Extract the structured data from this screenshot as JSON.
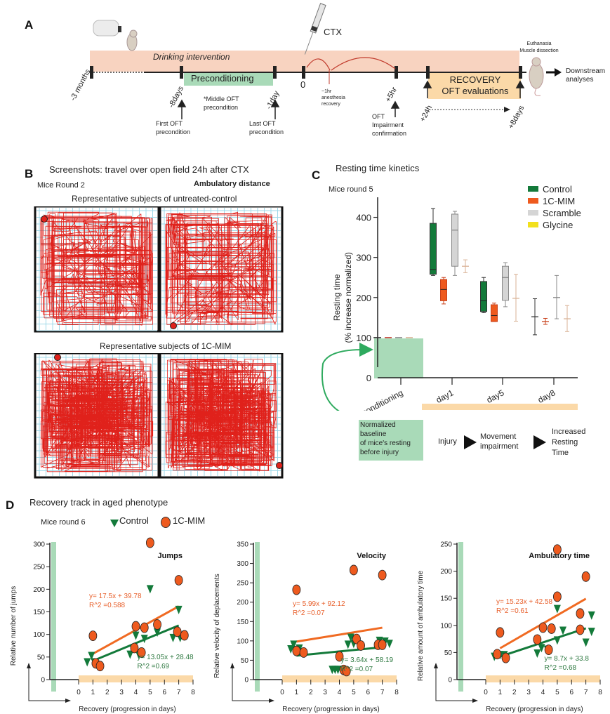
{
  "panelA": {
    "letter": "A",
    "drinking_label": "Drinking intervention",
    "preconditioning_label": "Preconditioning",
    "ctx_label": "CTX",
    "timepoints": [
      "-3 months",
      "-8days",
      "-1day",
      "0",
      "+5hr",
      "+24h",
      "+8days"
    ],
    "first_oft": [
      "First OFT",
      "precondition"
    ],
    "middle_oft": [
      "*Middle OFT",
      "precondition"
    ],
    "last_oft": [
      "Last OFT",
      "precondition"
    ],
    "anesthesia": [
      "~1hr",
      "anesthesia",
      "recovery"
    ],
    "impairment": [
      "OFT",
      "Impairment",
      "confirmation"
    ],
    "recovery_box": [
      "RECOVERY",
      "OFT evaluations"
    ],
    "euthanasia": [
      "Euthanasia",
      "Muscle dissection"
    ],
    "downstream": [
      "Downstream",
      "analyses"
    ],
    "colors": {
      "drinking": "#f8d3c0",
      "preconditioning": "#a9dab8",
      "recovery": "#fbd9a8",
      "accent_red": "#c0392b"
    }
  },
  "panelB": {
    "letter": "B",
    "title": "Screenshots: travel over open field 24h after CTX",
    "round": "Mice Round 2",
    "metric": "Ambulatory distance",
    "group1": "Representative subjects of untreated-control",
    "group2": "Representative subjects of 1C-MIM",
    "colors": {
      "grid": "#9fd8e8",
      "track": "#e0211b"
    }
  },
  "panelC": {
    "letter": "C",
    "title": "Resting time kinetics",
    "round": "Mice round 5",
    "baseline_note": [
      "Normalized",
      "baseline",
      "of mice's resting",
      "before injury"
    ],
    "flow": [
      "Injury",
      "Movement",
      "impairment",
      "Increased",
      "Resting",
      "Time"
    ]
  },
  "panelD": {
    "letter": "D",
    "title": "Recovery track in aged phenotype",
    "round": "Mice round 6",
    "legend": [
      "Control",
      "1C-MIM"
    ]
  },
  "chart_data": [
    {
      "id": "resting",
      "type": "box",
      "title": "Resting time kinetics",
      "ylabel": "Resting time (% increase normalized)",
      "yticks": [
        0,
        100,
        200,
        300,
        400
      ],
      "ylim": [
        0,
        450
      ],
      "categories": [
        "Pre-conditioning",
        "day1",
        "day5",
        "day8"
      ],
      "legend": [
        {
          "name": "Control",
          "color": "#137a3a"
        },
        {
          "name": "1C-MIM",
          "color": "#ee5a1e"
        },
        {
          "name": "Scramble",
          "color": "#d5d5d5"
        },
        {
          "name": "Glycine",
          "color": "#f2e01d"
        }
      ],
      "series": [
        {
          "name": "Control",
          "color": "#137a3a",
          "edge": "#333",
          "boxes": [
            {
              "cat": "Pre-conditioning",
              "median": 100
            },
            {
              "cat": "day1",
              "min": 255,
              "q1": 258,
              "median": 270,
              "q3": 385,
              "max": 422
            },
            {
              "cat": "day5",
              "min": 162,
              "q1": 165,
              "median": 192,
              "q3": 240,
              "max": 250
            },
            {
              "cat": "day8",
              "min": 107,
              "median": 152,
              "max": 197
            }
          ]
        },
        {
          "name": "1C-MIM",
          "color": "#ee5a1e",
          "edge": "#c8401a",
          "boxes": [
            {
              "cat": "Pre-conditioning",
              "median": 100
            },
            {
              "cat": "day1",
              "min": 184,
              "q1": 192,
              "median": 220,
              "q3": 245,
              "max": 250
            },
            {
              "cat": "day5",
              "min": 140,
              "q1": 140,
              "median": 155,
              "q3": 182,
              "max": 186
            },
            {
              "cat": "day8",
              "min": 133,
              "median": 140,
              "max": 148
            }
          ]
        },
        {
          "name": "Scramble",
          "color": "#d5d5d5",
          "edge": "#888",
          "boxes": [
            {
              "cat": "Pre-conditioning",
              "median": 100
            },
            {
              "cat": "day1",
              "min": 255,
              "q1": 278,
              "median": 368,
              "q3": 408,
              "max": 415
            },
            {
              "cat": "day5",
              "min": 177,
              "q1": 193,
              "median": 250,
              "q3": 278,
              "max": 287
            },
            {
              "cat": "day8",
              "min": 147,
              "median": 200,
              "max": 255
            }
          ]
        },
        {
          "name": "Glycine",
          "color": "#e8c4a8",
          "edge": "#d9b296",
          "boxes": [
            {
              "cat": "Pre-conditioning",
              "median": 100
            },
            {
              "cat": "day1",
              "min": 262,
              "median": 278,
              "max": 294
            },
            {
              "cat": "day5",
              "min": 141,
              "median": 198,
              "max": 258
            },
            {
              "cat": "day8",
              "min": 115,
              "median": 147,
              "max": 180
            }
          ]
        }
      ]
    },
    {
      "id": "jumps",
      "type": "scatter",
      "title": "Jumps",
      "xlabel": "Recovery (progression in days)",
      "ylabel": "Relative number of jumps",
      "xlim": [
        0,
        8
      ],
      "ylim": [
        0,
        300
      ],
      "xticks": [
        0,
        1,
        2,
        3,
        4,
        5,
        6,
        7,
        8
      ],
      "yticks": [
        0,
        50,
        100,
        150,
        200,
        250,
        300
      ],
      "series": [
        {
          "name": "Control",
          "marker": "triangle-down",
          "color": "#137a3a",
          "points": [
            [
              0.6,
              38
            ],
            [
              0.9,
              52
            ],
            [
              1.1,
              38
            ],
            [
              3.6,
              55
            ],
            [
              4.0,
              97
            ],
            [
              4.2,
              55
            ],
            [
              4.6,
              90
            ],
            [
              5.0,
              200
            ],
            [
              5.5,
              104
            ],
            [
              6.6,
              92
            ],
            [
              7.0,
              154
            ],
            [
              7.1,
              92
            ]
          ],
          "fit": {
            "label": "y= 13.05x + 28.48",
            "r2": "R^2 =0.69",
            "slope": 13.05,
            "intercept": 28.48,
            "x": [
              1,
              7
            ]
          }
        },
        {
          "name": "1C-MIM",
          "marker": "circle",
          "color": "#ee5a1e",
          "points": [
            [
              1.0,
              97
            ],
            [
              1.2,
              36
            ],
            [
              1.5,
              30
            ],
            [
              3.9,
              70
            ],
            [
              4.0,
              118
            ],
            [
              4.4,
              60
            ],
            [
              4.6,
              115
            ],
            [
              5.0,
              303
            ],
            [
              5.5,
              122
            ],
            [
              6.9,
              106
            ],
            [
              7.0,
              220
            ],
            [
              7.4,
              98
            ]
          ],
          "fit": {
            "label": "y= 17.5x + 39.78",
            "r2": "R^2 =0.588",
            "slope": 17.5,
            "intercept": 39.78,
            "x": [
              1,
              7
            ]
          }
        }
      ]
    },
    {
      "id": "velocity",
      "type": "scatter",
      "title": "Velocity",
      "xlabel": "Recovery (progression in days)",
      "ylabel": "Relative velocity of deplacements",
      "xlim": [
        0,
        8
      ],
      "ylim": [
        0,
        350
      ],
      "xticks": [
        0,
        1,
        2,
        3,
        4,
        5,
        6,
        7,
        8
      ],
      "yticks": [
        0,
        50,
        100,
        150,
        200,
        250,
        300,
        350
      ],
      "series": [
        {
          "name": "Control",
          "marker": "triangle-down",
          "color": "#137a3a",
          "points": [
            [
              0.6,
              78
            ],
            [
              0.8,
              90
            ],
            [
              1.2,
              80
            ],
            [
              3.5,
              25
            ],
            [
              3.7,
              25
            ],
            [
              3.9,
              25
            ],
            [
              4.8,
              108
            ],
            [
              4.6,
              90
            ],
            [
              5.0,
              92
            ],
            [
              6.8,
              100
            ],
            [
              7.2,
              98
            ],
            [
              7.5,
              92
            ]
          ],
          "fit": {
            "label": "y= 3.64x + 58.19",
            "r2": "R^2 =0.07",
            "slope": 3.64,
            "intercept": 58.19,
            "x": [
              1,
              7
            ]
          }
        },
        {
          "name": "1C-MIM",
          "marker": "circle",
          "color": "#ee5a1e",
          "points": [
            [
              1.0,
              232
            ],
            [
              1.0,
              74
            ],
            [
              1.5,
              70
            ],
            [
              4.0,
              60
            ],
            [
              4.3,
              25
            ],
            [
              4.5,
              22
            ],
            [
              5.0,
              283
            ],
            [
              5.2,
              105
            ],
            [
              5.5,
              88
            ],
            [
              6.7,
              90
            ],
            [
              7.0,
              90
            ],
            [
              7.0,
              270
            ]
          ],
          "fit": {
            "label": "y= 5.99x + 92.12",
            "r2": "R^2 =0.07",
            "slope": 5.99,
            "intercept": 92.12,
            "x": [
              1,
              7
            ]
          }
        }
      ]
    },
    {
      "id": "ambulatory",
      "type": "scatter",
      "title": "Ambulatory time",
      "xlabel": "Recovery (progression in days)",
      "ylabel": "Relative amount of ambulatory time",
      "xlim": [
        0,
        8
      ],
      "ylim": [
        0,
        250
      ],
      "xticks": [
        0,
        1,
        2,
        3,
        4,
        5,
        6,
        7,
        8
      ],
      "yticks": [
        0,
        50,
        100,
        150,
        200,
        250
      ],
      "series": [
        {
          "name": "Control",
          "marker": "triangle-down",
          "color": "#137a3a",
          "points": [
            [
              0.6,
              42
            ],
            [
              1.0,
              45
            ],
            [
              1.3,
              45
            ],
            [
              3.6,
              48
            ],
            [
              3.9,
              58
            ],
            [
              4.3,
              55
            ],
            [
              5.0,
              130
            ],
            [
              5.0,
              72
            ],
            [
              5.4,
              90
            ],
            [
              7.0,
              68
            ],
            [
              7.4,
              118
            ],
            [
              7.4,
              88
            ]
          ],
          "fit": {
            "label": "y= 8.7x + 33.8",
            "r2": "R^2 =0.68",
            "slope": 8.7,
            "intercept": 33.8,
            "x": [
              1,
              7
            ]
          }
        },
        {
          "name": "1C-MIM",
          "marker": "circle",
          "color": "#ee5a1e",
          "points": [
            [
              1.0,
              87
            ],
            [
              0.8,
              47
            ],
            [
              1.4,
              40
            ],
            [
              3.6,
              74
            ],
            [
              4.0,
              96
            ],
            [
              4.4,
              55
            ],
            [
              4.6,
              94
            ],
            [
              5.0,
              240
            ],
            [
              5.0,
              153
            ],
            [
              6.6,
              122
            ],
            [
              6.6,
              92
            ],
            [
              7.0,
              190
            ]
          ],
          "fit": {
            "label": "y= 15.23x + 42.58",
            "r2": "R^2 =0.61",
            "slope": 15.23,
            "intercept": 42.58,
            "x": [
              1,
              7
            ]
          }
        }
      ]
    }
  ]
}
